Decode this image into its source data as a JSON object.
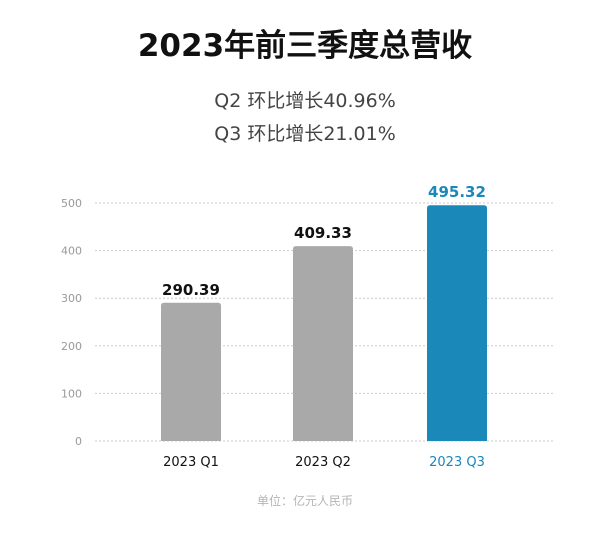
{
  "title": "2023年前三季度总营收",
  "subtitles": [
    "Q2 环比增长40.96%",
    "Q3 环比增长21.01%"
  ],
  "unit_note": "单位：亿元人民币",
  "colors": {
    "bar": "#a9a9a9",
    "highlight": "#1a88b8",
    "grid": "#cccccc",
    "label": "#111111"
  },
  "chart_data": {
    "type": "bar",
    "categories": [
      "2023 Q1",
      "2023 Q2",
      "2023 Q3"
    ],
    "values": [
      290.39,
      409.33,
      495.32
    ],
    "value_labels": [
      "290.39",
      "409.33",
      "495.32"
    ],
    "highlight_index": 2,
    "yticks": [
      "0",
      "100",
      "200",
      "300",
      "400",
      "500"
    ],
    "ylim": [
      0,
      500
    ],
    "grid": true
  }
}
